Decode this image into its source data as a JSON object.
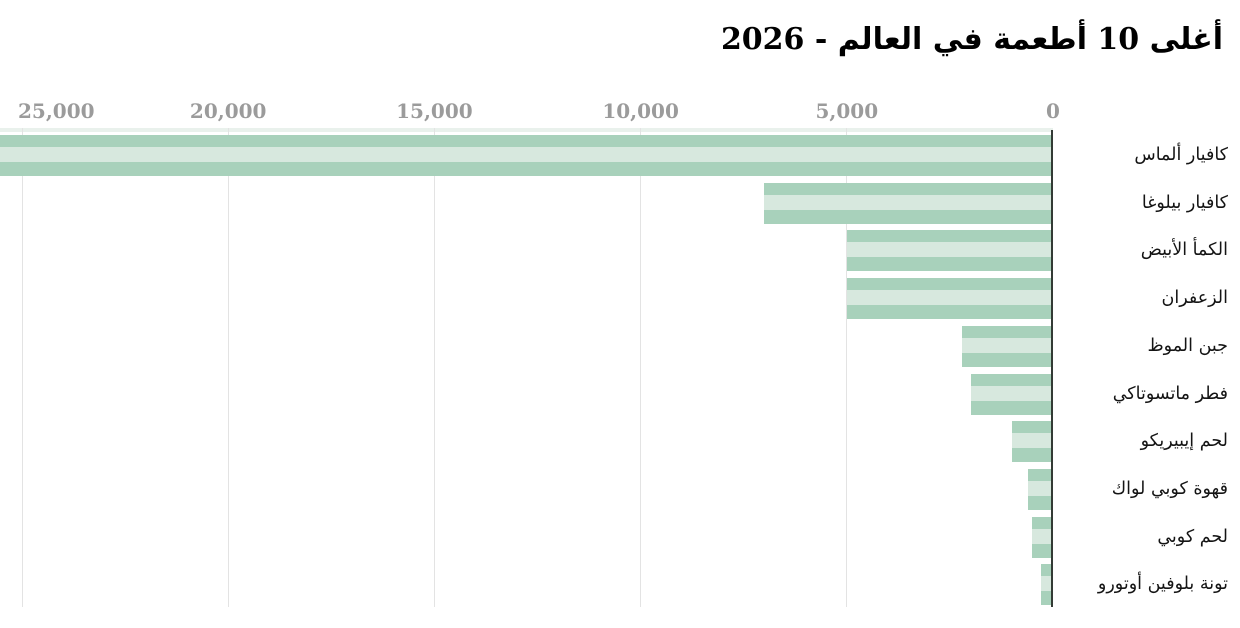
{
  "title": "أغلى 10 أطعمة في العالم - 2026",
  "chart_data": {
    "type": "bar",
    "orientation": "horizontal",
    "direction": "rtl",
    "title": "أغلى 10 أطعمة في العالم - 2026",
    "categories": [
      "كافيار ألماس",
      "كافيار بيلوغا",
      "الكمأ الأبيض",
      "الزعفران",
      "جبن الموظ",
      "فطر ماتسوتاكي",
      "لحم إيبيريكو",
      "قهوة كوبي لواك",
      "لحم كوبي",
      "تونة بلوفين أوتورو"
    ],
    "values": [
      26000,
      7000,
      5000,
      5000,
      2200,
      2000,
      1000,
      600,
      500,
      300
    ],
    "first_bar_clipped_at_plot_edge": true,
    "xlim": [
      0,
      25000
    ],
    "ticks": [
      {
        "value": 25000,
        "label": "25,000"
      },
      {
        "value": 20000,
        "label": "20,000"
      },
      {
        "value": 15000,
        "label": "15,000"
      },
      {
        "value": 10000,
        "label": "10,000"
      },
      {
        "value": 5000,
        "label": "5,000"
      },
      {
        "value": 0,
        "label": "0"
      }
    ],
    "grid": true,
    "legend": "none",
    "colors": {
      "bar_stripe_dark": "#a8d1bb",
      "bar_stripe_light": "#d7e8de",
      "plot_top_line": "#e9f1ec",
      "gridline": "#e3e3e3",
      "axis_line": "#333b35",
      "tick_text": "#9b9b9b",
      "label_text": "#141414"
    }
  }
}
